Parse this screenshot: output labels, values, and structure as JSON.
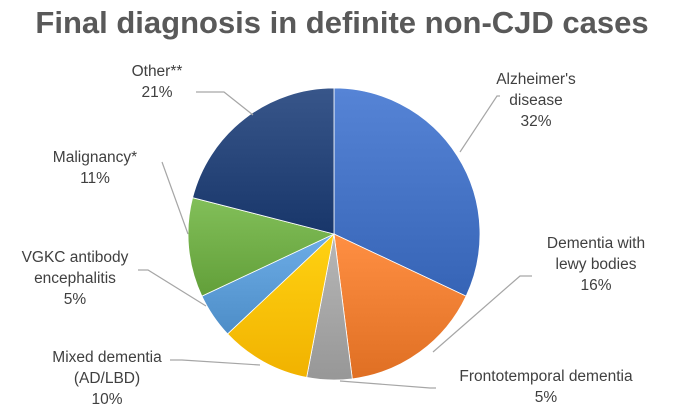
{
  "chart_data": {
    "type": "pie",
    "title": "Final diagnosis in definite non-CJD cases",
    "slices": [
      {
        "label": "Alzheimer's disease",
        "label_lines": [
          "Alzheimer's",
          "disease"
        ],
        "value": 32,
        "value_label": "32%",
        "color": "#4472c4"
      },
      {
        "label": "Dementia with lewy bodies",
        "label_lines": [
          "Dementia with",
          "lewy bodies"
        ],
        "value": 16,
        "value_label": "16%",
        "color": "#ed7d31"
      },
      {
        "label": "Frontotemporal dementia",
        "label_lines": [
          "Frontotemporal dementia"
        ],
        "value": 5,
        "value_label": "5%",
        "color": "#a5a5a5"
      },
      {
        "label": "Mixed dementia (AD/LBD)",
        "label_lines": [
          "Mixed dementia",
          "(AD/LBD)"
        ],
        "value": 10,
        "value_label": "10%",
        "color": "#ffc000"
      },
      {
        "label": "VGKC antibody encephalitis",
        "label_lines": [
          "VGKC antibody",
          "encephalitis"
        ],
        "value": 5,
        "value_label": "5%",
        "color": "#5b9bd5"
      },
      {
        "label": "Malignancy*",
        "label_lines": [
          "Malignancy*"
        ],
        "value": 11,
        "value_label": "11%",
        "color": "#70ad47"
      },
      {
        "label": "Other**",
        "label_lines": [
          "Other**"
        ],
        "value": 21,
        "value_label": "21%",
        "color": "#264478"
      }
    ]
  }
}
